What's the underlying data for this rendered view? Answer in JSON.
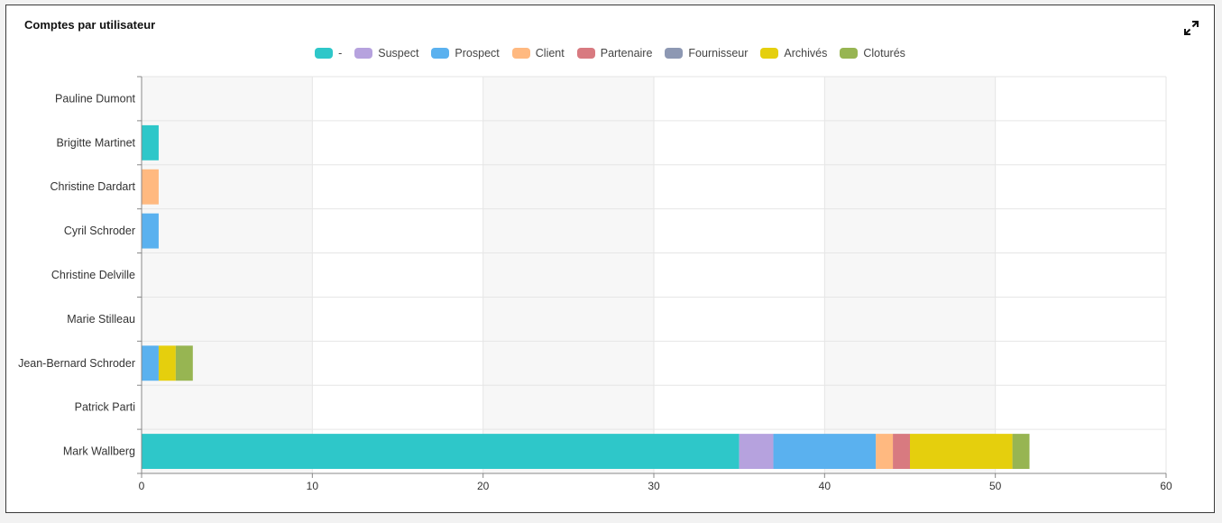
{
  "card": {
    "title": "Comptes par utilisateur"
  },
  "chart_data": {
    "type": "bar",
    "orientation": "horizontal",
    "stacked": true,
    "title": "Comptes par utilisateur",
    "xlim": [
      0,
      60
    ],
    "xticks": [
      0,
      10,
      20,
      30,
      40,
      50,
      60
    ],
    "grid": true,
    "legend_position": "top-center",
    "categories": [
      "Pauline Dumont",
      "Brigitte Martinet",
      "Christine Dardart",
      "Cyril Schroder",
      "Christine Delville",
      "Marie Stilleau",
      "Jean-Bernard Schroder",
      "Patrick Parti",
      "Mark Wallberg"
    ],
    "series": [
      {
        "name": "-",
        "color": "#2ec7c9",
        "values": [
          0,
          1,
          0,
          0,
          0,
          0,
          0,
          0,
          35
        ]
      },
      {
        "name": "Suspect",
        "color": "#b6a2de",
        "values": [
          0,
          0,
          0,
          0,
          0,
          0,
          0,
          0,
          2
        ]
      },
      {
        "name": "Prospect",
        "color": "#5ab1ef",
        "values": [
          0,
          0,
          0,
          1,
          0,
          0,
          1,
          0,
          6
        ]
      },
      {
        "name": "Client",
        "color": "#ffb980",
        "values": [
          0,
          0,
          1,
          0,
          0,
          0,
          0,
          0,
          1
        ]
      },
      {
        "name": "Partenaire",
        "color": "#d87a80",
        "values": [
          0,
          0,
          0,
          0,
          0,
          0,
          0,
          0,
          1
        ]
      },
      {
        "name": "Fournisseur",
        "color": "#8d98b3",
        "values": [
          0,
          0,
          0,
          0,
          0,
          0,
          0,
          0,
          0
        ]
      },
      {
        "name": "Archivés",
        "color": "#e5cf0d",
        "values": [
          0,
          0,
          0,
          0,
          0,
          0,
          1,
          0,
          6
        ]
      },
      {
        "name": "Cloturés",
        "color": "#97b552",
        "values": [
          0,
          0,
          0,
          0,
          0,
          0,
          1,
          0,
          1
        ]
      }
    ]
  }
}
